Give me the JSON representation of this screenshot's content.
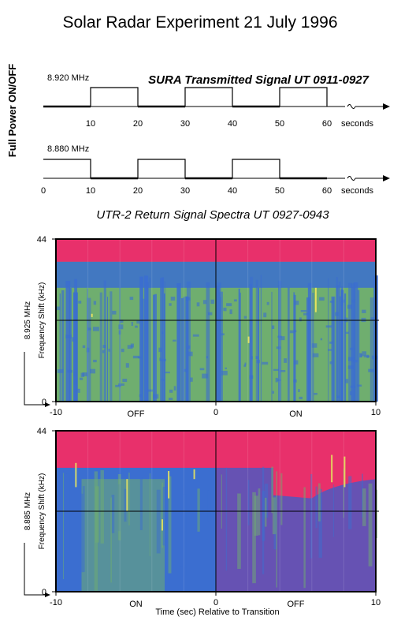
{
  "title": "Solar Radar Experiment  21 July 1996",
  "transmit": {
    "ylabel": "Full Power  ON/OFF",
    "title": "SURA Transmitted Signal   UT 0911-0927",
    "seconds_label": "seconds",
    "rows": [
      {
        "freq_label": "8.920 MHz",
        "ticks": [
          "10",
          "20",
          "30",
          "40",
          "50",
          "60"
        ],
        "tick_values": [
          10,
          20,
          30,
          40,
          50,
          60
        ]
      },
      {
        "freq_label": "8.880 MHz",
        "ticks": [
          "0",
          "10",
          "20",
          "30",
          "40",
          "50",
          "60"
        ],
        "tick_values": [
          0,
          10,
          20,
          30,
          40,
          50,
          60
        ]
      }
    ]
  },
  "spectra": {
    "title": "UTR-2 Return Signal Spectra   UT  0927-0943",
    "xlabel": "Time (sec) Relative to Transition",
    "panels": [
      {
        "freq_label": "8.925 MHz",
        "ylabel": "Frequency Shift (kHz)",
        "y_top_label": "44",
        "y_bottom_label": "0",
        "x_ticks": [
          "-10",
          "0",
          "10"
        ],
        "left_state": "OFF",
        "right_state": "ON"
      },
      {
        "freq_label": "8.885 MHz",
        "ylabel": "Frequency Shift (kHz)",
        "y_top_label": "44",
        "y_bottom_label": "0",
        "x_ticks": [
          "-10",
          "0",
          "10"
        ],
        "left_state": "ON",
        "right_state": "OFF"
      }
    ]
  },
  "colors": {
    "magenta": "#e8306b",
    "violet": "#6652b3",
    "blue": "#3b6ed0",
    "green": "#6fae6f",
    "yellow": "#e4e260",
    "axis": "#000000"
  },
  "chart_data": [
    {
      "type": "line",
      "title": "SURA Transmitted Signal   UT 0911-0927",
      "series": [
        {
          "name": "8.920 MHz",
          "x": [
            0,
            10,
            10,
            20,
            20,
            30,
            30,
            40,
            40,
            50,
            50,
            60,
            60,
            65
          ],
          "y": [
            0,
            0,
            1,
            1,
            0,
            0,
            1,
            1,
            0,
            0,
            1,
            1,
            0,
            0
          ]
        },
        {
          "name": "8.880 MHz",
          "x": [
            0,
            10,
            10,
            20,
            20,
            30,
            30,
            40,
            40,
            50,
            50,
            60,
            60,
            65
          ],
          "y": [
            1,
            1,
            0,
            0,
            1,
            1,
            0,
            0,
            1,
            1,
            0,
            0,
            0,
            0
          ]
        }
      ],
      "xlabel": "seconds",
      "ylabel": "Full Power  ON/OFF",
      "xlim": [
        0,
        60
      ]
    },
    {
      "type": "heatmap",
      "title": "8.925 MHz",
      "xlim": [
        -10,
        10
      ],
      "ylim": [
        0,
        44
      ],
      "xlabel": "",
      "ylabel": "Frequency Shift (kHz)",
      "annotations": [
        "OFF",
        "ON"
      ]
    },
    {
      "type": "heatmap",
      "title": "8.885 MHz",
      "xlim": [
        -10,
        10
      ],
      "ylim": [
        0,
        44
      ],
      "xlabel": "Time (sec) Relative to Transition",
      "ylabel": "Frequency Shift (kHz)",
      "annotations": [
        "ON",
        "OFF"
      ]
    }
  ]
}
